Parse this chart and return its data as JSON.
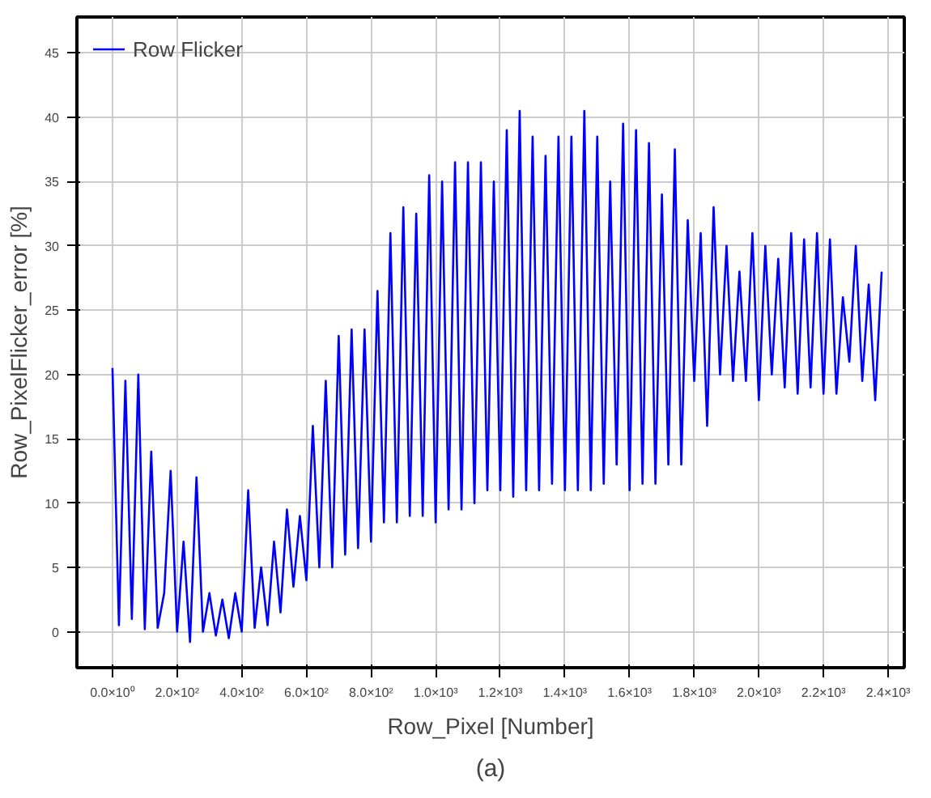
{
  "chart_data": {
    "type": "line",
    "xlabel": "Row_Pixel [Number]",
    "ylabel": "Row_PixelFlicker_error [%]",
    "annotations": [
      "(a)"
    ],
    "x": [
      0,
      20,
      40,
      60,
      80,
      100,
      120,
      140,
      160,
      180,
      200,
      220,
      240,
      260,
      280,
      300,
      320,
      340,
      360,
      380,
      400,
      420,
      440,
      460,
      480,
      500,
      520,
      540,
      560,
      580,
      600,
      620,
      640,
      660,
      680,
      700,
      720,
      740,
      760,
      780,
      800,
      820,
      840,
      860,
      880,
      900,
      920,
      940,
      960,
      980,
      1000,
      1020,
      1040,
      1060,
      1080,
      1100,
      1120,
      1140,
      1160,
      1180,
      1200,
      1220,
      1240,
      1260,
      1280,
      1300,
      1320,
      1340,
      1360,
      1380,
      1400,
      1420,
      1440,
      1460,
      1480,
      1500,
      1520,
      1540,
      1560,
      1580,
      1600,
      1620,
      1640,
      1660,
      1680,
      1700,
      1720,
      1740,
      1760,
      1780,
      1800,
      1820,
      1840,
      1860,
      1880,
      1900,
      1920,
      1940,
      1960,
      1980,
      2000,
      2020,
      2040,
      2060,
      2080,
      2100,
      2120,
      2140,
      2160,
      2180,
      2200,
      2220,
      2240,
      2260,
      2280,
      2300,
      2320,
      2340,
      2360,
      2380
    ],
    "series": [
      {
        "name": "Row Flicker",
        "color": "#0000ff",
        "values": [
          20.5,
          0.5,
          19.5,
          1,
          20,
          0.2,
          14,
          0.3,
          3,
          12.5,
          0,
          7,
          -0.8,
          12,
          0,
          3,
          -0.3,
          2.5,
          -0.5,
          3,
          0,
          11,
          0.3,
          5,
          0.5,
          7,
          1.5,
          9.5,
          3.5,
          9,
          4,
          16,
          5,
          19.5,
          5,
          23,
          6,
          23.5,
          6.5,
          23.5,
          7,
          26.5,
          8.5,
          31,
          8.5,
          33,
          9,
          32.5,
          9,
          35.5,
          8.5,
          35,
          9.5,
          36.5,
          9.5,
          36.5,
          10,
          36.5,
          11,
          35,
          11,
          39,
          10.5,
          40.5,
          11,
          38.5,
          11,
          37,
          11.5,
          38.5,
          11,
          38.5,
          11,
          40.5,
          11,
          38.5,
          11.5,
          35,
          13,
          39.5,
          11,
          39,
          11.5,
          38,
          11.5,
          34,
          13,
          37.5,
          13,
          32,
          19.5,
          31,
          16,
          33,
          20,
          30,
          19.5,
          28,
          19.5,
          31,
          18,
          30,
          20,
          29,
          19,
          31,
          18.5,
          30.5,
          19,
          31,
          18.5,
          30.5,
          18.5,
          26,
          21,
          30,
          19.5,
          27,
          18,
          28
        ]
      }
    ],
    "xlim": [
      -110,
      2450
    ],
    "ylim": [
      -2.8,
      47.8
    ],
    "xticks": [
      {
        "value": 0,
        "label": "0.0×10⁰"
      },
      {
        "value": 200,
        "label": "2.0×10²"
      },
      {
        "value": 400,
        "label": "4.0×10²"
      },
      {
        "value": 600,
        "label": "6.0×10²"
      },
      {
        "value": 800,
        "label": "8.0×10²"
      },
      {
        "value": 1000,
        "label": "1.0×10³"
      },
      {
        "value": 1200,
        "label": "1.2×10³"
      },
      {
        "value": 1400,
        "label": "1.4×10³"
      },
      {
        "value": 1600,
        "label": "1.6×10³"
      },
      {
        "value": 1800,
        "label": "1.8×10³"
      },
      {
        "value": 2000,
        "label": "2.0×10³"
      },
      {
        "value": 2200,
        "label": "2.2×10³"
      },
      {
        "value": 2400,
        "label": "2.4×10³"
      }
    ],
    "yticks": [
      0,
      5,
      10,
      15,
      20,
      25,
      30,
      35,
      40,
      45
    ],
    "grid": true,
    "legend": "top left",
    "marker": "none",
    "line_style": "solid"
  }
}
